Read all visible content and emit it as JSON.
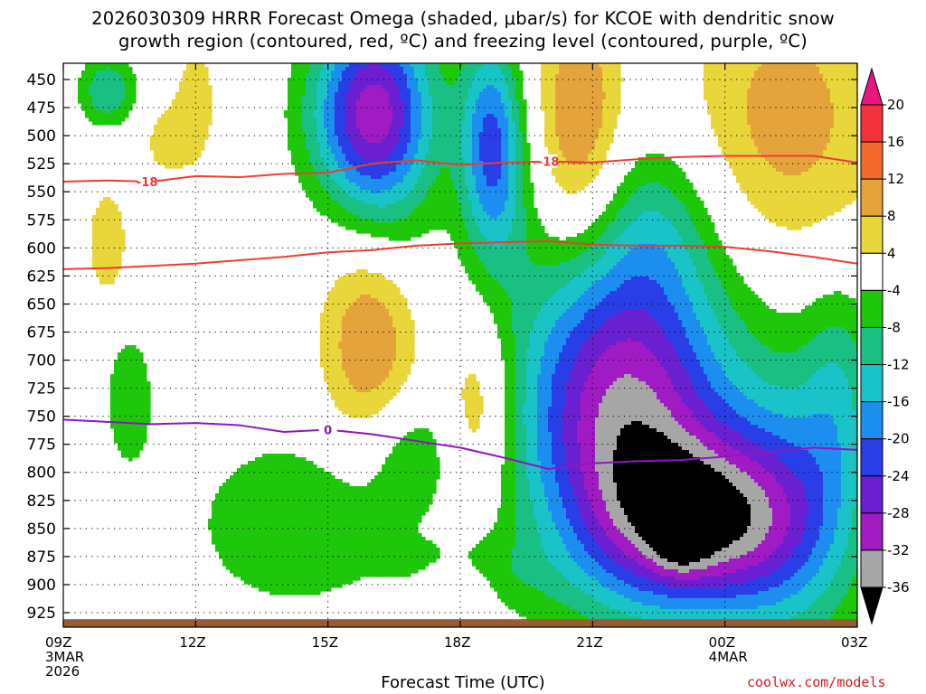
{
  "title": {
    "line1": "2026030309 HRRR Forecast Omega (shaded, μbar/s) for KCOE with dendritic snow",
    "line2": "growth region (contoured, red, ºC) and freezing level (contoured, purple, ºC)"
  },
  "xlabel": "Forecast Time (UTC)",
  "credit": "coolwx.com/models",
  "chart_data": {
    "type": "heatmap",
    "title": "2026030309 HRRR Forecast Omega (shaded, μbar/s) for KCOE with dendritic snow growth region (contoured, red, ºC) and freezing level (contoured, purple, ºC)",
    "xlabel": "Forecast Time (UTC)",
    "ylabel": "",
    "x_ticks": [
      {
        "hour": 0,
        "label": "09Z",
        "sub": [
          "3MAR",
          "2026"
        ]
      },
      {
        "hour": 3,
        "label": "12Z",
        "sub": []
      },
      {
        "hour": 6,
        "label": "15Z",
        "sub": []
      },
      {
        "hour": 9,
        "label": "18Z",
        "sub": []
      },
      {
        "hour": 12,
        "label": "21Z",
        "sub": []
      },
      {
        "hour": 15,
        "label": "00Z",
        "sub": [
          "4MAR"
        ]
      },
      {
        "hour": 18,
        "label": "03Z",
        "sub": []
      }
    ],
    "y_ticks": [
      450,
      475,
      500,
      525,
      550,
      575,
      600,
      625,
      650,
      675,
      700,
      725,
      750,
      775,
      800,
      825,
      850,
      875,
      900,
      925
    ],
    "xlim": [
      0,
      18
    ],
    "ylim": [
      440,
      940
    ],
    "ground_pressure": 934,
    "colorbar": {
      "labels": [
        "20",
        "16",
        "12",
        "8",
        "4",
        "-4",
        "-8",
        "-12",
        "-16",
        "-20",
        "-24",
        "-28",
        "-32",
        "-36"
      ],
      "bins": [
        {
          "range": "top",
          "color": "#e8177f"
        },
        {
          "range": "16 to 20",
          "color": "#f2333d"
        },
        {
          "range": "12 to 16",
          "color": "#f36a2c"
        },
        {
          "range": "8 to 12",
          "color": "#e5a33b"
        },
        {
          "range": "4 to 8",
          "color": "#e9d63a"
        },
        {
          "range": "-4 to 4",
          "color": "#ffffff"
        },
        {
          "range": "-8 to -4",
          "color": "#1ec70a"
        },
        {
          "range": "-12 to -8",
          "color": "#1ac083"
        },
        {
          "range": "-16 to -12",
          "color": "#19c3c8"
        },
        {
          "range": "-20 to -16",
          "color": "#1b8ef0"
        },
        {
          "range": "-24 to -20",
          "color": "#2a3ee8"
        },
        {
          "range": "-28 to -24",
          "color": "#6a1fd0"
        },
        {
          "range": "-32 to -28",
          "color": "#a11bc4"
        },
        {
          "range": "-36 to -32",
          "color": "#a6a6a6"
        },
        {
          "range": "bottom",
          "color": "#000000"
        }
      ]
    },
    "omega_centers": [
      {
        "x": 1.0,
        "p": 460,
        "v": -12,
        "sx": 0.45,
        "sp": 22
      },
      {
        "x": 1.5,
        "p": 735,
        "v": -7.5,
        "sx": 0.4,
        "sp": 45
      },
      {
        "x": 3.0,
        "p": 470,
        "v": 6.5,
        "sx": 0.35,
        "sp": 42
      },
      {
        "x": 2.3,
        "p": 505,
        "v": 5.5,
        "sx": 0.4,
        "sp": 25
      },
      {
        "x": 1.0,
        "p": 595,
        "v": 7,
        "sx": 0.35,
        "sp": 38
      },
      {
        "x": 6.9,
        "p": 480,
        "v": -20,
        "sx": 1.0,
        "sp": 55
      },
      {
        "x": 7.2,
        "p": 510,
        "v": -12,
        "sx": 0.85,
        "sp": 120
      },
      {
        "x": 9.7,
        "p": 490,
        "v": -17,
        "sx": 0.5,
        "sp": 60
      },
      {
        "x": 9.8,
        "p": 560,
        "v": -8,
        "sx": 0.55,
        "sp": 55
      },
      {
        "x": 5.2,
        "p": 845,
        "v": -8,
        "sx": 1.6,
        "sp": 55
      },
      {
        "x": 7.8,
        "p": 780,
        "v": -7,
        "sx": 0.8,
        "sp": 40
      },
      {
        "x": 9.2,
        "p": 892,
        "v": -6,
        "sx": 1.2,
        "sp": 25
      },
      {
        "x": 7.0,
        "p": 675,
        "v": 16,
        "sx": 0.8,
        "sp": 75
      },
      {
        "x": 9.4,
        "p": 745,
        "v": 10,
        "sx": 0.55,
        "sp": 60
      },
      {
        "x": 9.0,
        "p": 905,
        "v": 6.5,
        "sx": 0.6,
        "sp": 20
      },
      {
        "x": 11.7,
        "p": 490,
        "v": 13,
        "sx": 0.7,
        "sp": 80
      },
      {
        "x": 16.4,
        "p": 485,
        "v": 10,
        "sx": 1.6,
        "sp": 90
      },
      {
        "x": 12.7,
        "p": 740,
        "v": -32,
        "sx": 1.7,
        "sp": 105
      },
      {
        "x": 14.5,
        "p": 845,
        "v": -28,
        "sx": 1.6,
        "sp": 55
      },
      {
        "x": 14.0,
        "p": 855,
        "v": -10,
        "sx": 0.4,
        "sp": 20
      },
      {
        "x": 16.6,
        "p": 830,
        "v": -13,
        "sx": 1.2,
        "sp": 95
      },
      {
        "x": 17.6,
        "p": 720,
        "v": -8,
        "sx": 0.6,
        "sp": 70
      },
      {
        "x": 13.5,
        "p": 575,
        "v": -6,
        "sx": 0.9,
        "sp": 55
      }
    ],
    "dgz_top_line": {
      "label": "-18",
      "label_at": [
        1.9,
        11.0
      ],
      "color": "#ee3b35",
      "x": [
        0,
        1,
        2,
        3,
        4,
        5,
        6,
        7,
        8,
        9,
        10,
        11,
        12,
        13,
        14,
        15,
        16,
        17,
        18
      ],
      "p": [
        541,
        540,
        541,
        536,
        537,
        534,
        533,
        525,
        522,
        526,
        524,
        523,
        524,
        521,
        519,
        518,
        518,
        518,
        524
      ]
    },
    "dgz_bottom_line": {
      "label": "",
      "color": "#ee3b35",
      "x": [
        0,
        1,
        2,
        3,
        4,
        5,
        6,
        7,
        8,
        9,
        10,
        11,
        12,
        13,
        14,
        15,
        16,
        17,
        18
      ],
      "p": [
        619,
        618,
        616,
        614,
        611,
        608,
        604,
        602,
        598,
        596,
        595,
        594,
        597,
        598,
        598,
        599,
        603,
        608,
        614
      ]
    },
    "freezing_level": {
      "label": "0",
      "label_at": [
        6.0
      ],
      "color": "#8e16c0",
      "x": [
        0,
        1,
        2,
        3,
        4,
        5,
        6,
        7,
        8,
        9,
        10,
        11,
        12,
        13,
        14,
        15,
        16,
        17,
        18
      ],
      "p": [
        753,
        755,
        757,
        756,
        758,
        764,
        762,
        766,
        772,
        778,
        787,
        797,
        792,
        790,
        789,
        786,
        782,
        778,
        780
      ]
    }
  }
}
